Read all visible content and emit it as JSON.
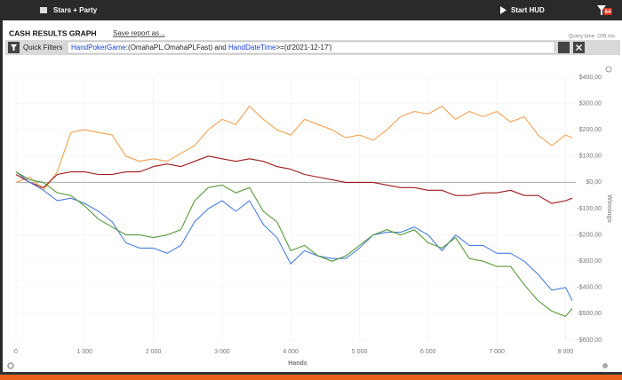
{
  "ui": {
    "workspace": "Stars + Party",
    "hud_button": "Start HUD",
    "badge": "64",
    "report_title": "CASH RESULTS GRAPH",
    "save_link": "Save report as...",
    "query_time": "Query time: 009 ms",
    "quick_filters": "Quick Filters",
    "filter_parts": [
      "HandPokerGame",
      ":(OmahaPL,OmahaPLFast) and ",
      "HandDateTime",
      ">=(d'2021-12-17')"
    ]
  },
  "chart_data": {
    "type": "line",
    "xlabel": "Hands",
    "ylabel": "Winnings",
    "grid": true,
    "x": [
      0,
      200,
      400,
      600,
      800,
      1000,
      1200,
      1400,
      1600,
      1800,
      2000,
      2200,
      2400,
      2600,
      2800,
      3000,
      3200,
      3400,
      3600,
      3800,
      4000,
      4200,
      4400,
      4600,
      4800,
      5000,
      5200,
      5400,
      5600,
      5800,
      6000,
      6200,
      6400,
      6600,
      6800,
      7000,
      7200,
      7400,
      7600,
      7800,
      8000,
      8100
    ],
    "series": [
      {
        "color": "#f5a14f",
        "values": [
          0,
          20,
          -30,
          40,
          190,
          200,
          190,
          180,
          100,
          80,
          90,
          80,
          110,
          140,
          200,
          240,
          220,
          290,
          240,
          200,
          180,
          240,
          220,
          200,
          170,
          180,
          160,
          200,
          250,
          270,
          260,
          290,
          240,
          270,
          250,
          270,
          230,
          250,
          180,
          140,
          180,
          170
        ]
      },
      {
        "color": "#9e1b1b",
        "values": [
          30,
          0,
          -20,
          30,
          40,
          40,
          30,
          30,
          40,
          40,
          60,
          70,
          60,
          80,
          100,
          90,
          80,
          90,
          80,
          60,
          50,
          30,
          20,
          10,
          0,
          0,
          0,
          -10,
          -20,
          -20,
          -30,
          -30,
          -50,
          -50,
          -40,
          -40,
          -30,
          -50,
          -50,
          -80,
          -70,
          -60
        ]
      },
      {
        "color": "#4a7fe0",
        "values": [
          40,
          0,
          -30,
          -70,
          -60,
          -80,
          -110,
          -150,
          -230,
          -250,
          -250,
          -270,
          -240,
          -150,
          -100,
          -70,
          -110,
          -70,
          -160,
          -210,
          -310,
          -260,
          -280,
          -290,
          -290,
          -250,
          -200,
          -190,
          -190,
          -170,
          -200,
          -260,
          -200,
          -240,
          -240,
          -270,
          -270,
          -300,
          -350,
          -410,
          -400,
          -450
        ]
      },
      {
        "color": "#5a9a3a",
        "values": [
          40,
          10,
          0,
          -40,
          -50,
          -90,
          -140,
          -170,
          -200,
          -200,
          -210,
          -200,
          -180,
          -70,
          -20,
          -10,
          -40,
          -20,
          -110,
          -150,
          -260,
          -240,
          -280,
          -300,
          -280,
          -240,
          -200,
          -180,
          -200,
          -180,
          -230,
          -250,
          -210,
          -290,
          -300,
          -320,
          -320,
          -390,
          -450,
          -490,
          -510,
          -480
        ]
      }
    ],
    "xlim": [
      0,
      8150
    ],
    "xticks": [
      0,
      {
        "value": 1000,
        "label": "1 000"
      },
      {
        "value": 2000,
        "label": "2 000"
      },
      {
        "value": 3000,
        "label": "3 000"
      },
      {
        "value": 4000,
        "label": "4 000"
      },
      {
        "value": 5000,
        "label": "5 000"
      },
      {
        "value": 6000,
        "label": "6 000"
      },
      {
        "value": 7000,
        "label": "7 000"
      },
      {
        "value": 8000,
        "label": "8 000"
      }
    ],
    "ylim": [
      -600,
      400
    ],
    "yticks": [
      {
        "value": 400,
        "label": "$400,00"
      },
      {
        "value": 300,
        "label": "$300,00"
      },
      {
        "value": 200,
        "label": "$200,00"
      },
      {
        "value": 100,
        "label": "$100,00"
      },
      {
        "value": 0,
        "label": "$0,00"
      },
      {
        "value": -100,
        "label": "-$100,00"
      },
      {
        "value": -200,
        "label": "-$200,00"
      },
      {
        "value": -300,
        "label": "-$300,00"
      },
      {
        "value": -400,
        "label": "-$400,00"
      },
      {
        "value": -500,
        "label": "-$500,00"
      },
      {
        "value": -600,
        "label": "-$600,00"
      }
    ]
  }
}
